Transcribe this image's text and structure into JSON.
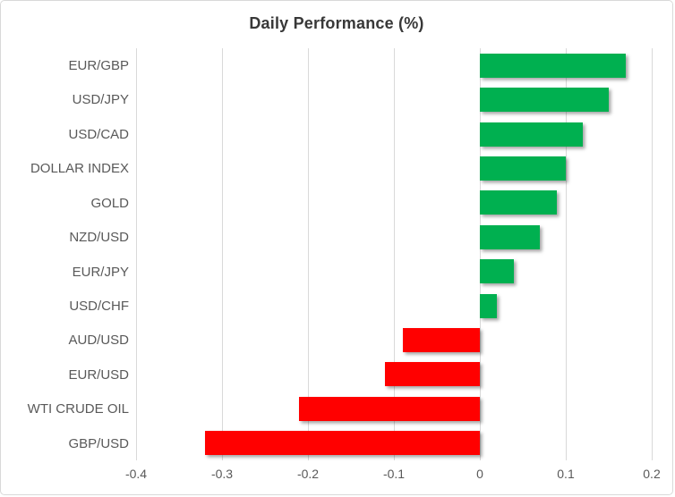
{
  "chart_data": {
    "type": "bar",
    "orientation": "horizontal",
    "title": "Daily Performance (%)",
    "categories": [
      "EUR/GBP",
      "USD/JPY",
      "USD/CAD",
      "DOLLAR INDEX",
      "GOLD",
      "NZD/USD",
      "EUR/JPY",
      "USD/CHF",
      "AUD/USD",
      "EUR/USD",
      "WTI CRUDE OIL",
      "GBP/USD"
    ],
    "values": [
      0.17,
      0.15,
      0.12,
      0.1,
      0.09,
      0.07,
      0.04,
      0.02,
      -0.09,
      -0.11,
      -0.21,
      -0.32
    ],
    "xlabel": "",
    "ylabel": "",
    "xlim": [
      -0.4,
      0.2
    ],
    "xticks": [
      -0.4,
      -0.3,
      -0.2,
      -0.1,
      0,
      0.1,
      0.2
    ],
    "xtick_labels": [
      "-0.4",
      "-0.3",
      "-0.2",
      "-0.1",
      "0",
      "0.1",
      "0.2"
    ],
    "grid": "vertical-only",
    "legend": "none",
    "colors": {
      "positive_bar": "#00B050",
      "negative_bar": "#FF0000",
      "gridline": "#d9d9d9",
      "frame_border": "#d9d9d9",
      "title_text": "#383838",
      "category_text": "#595959",
      "tick_text": "#595959",
      "background": "#ffffff"
    }
  }
}
